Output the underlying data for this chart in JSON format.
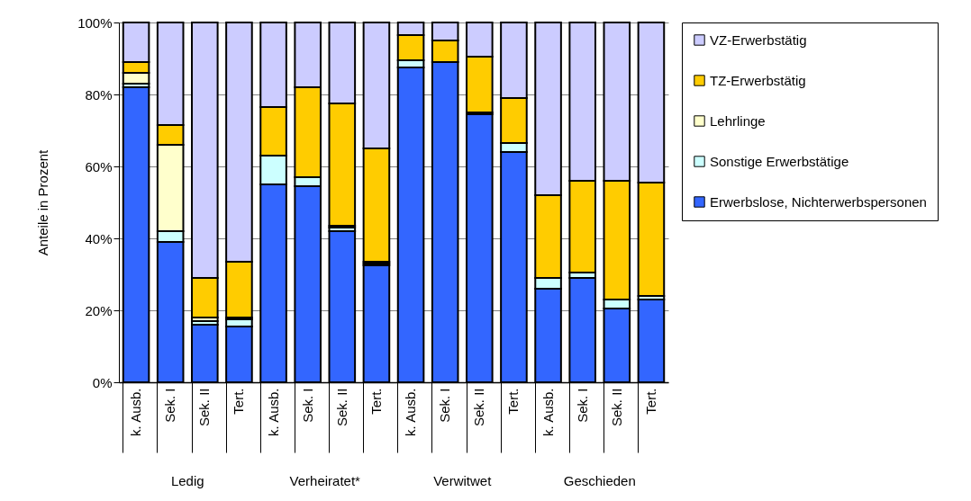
{
  "chart_data": {
    "type": "bar",
    "stacked": true,
    "ylabel": "Anteile in Prozent",
    "categories": [
      "k. Ausb.",
      "Sek. I",
      "Sek. II",
      "Tert.",
      "k. Ausb.",
      "Sek. I",
      "Sek. II",
      "Tert.",
      "k. Ausb.",
      "Sek. I",
      "Sek. II",
      "Tert.",
      "k. Ausb.",
      "Sek. I",
      "Sek. II",
      "Tert."
    ],
    "annotations": [
      "Ledig",
      "Verheiratet*",
      "Verwitwet",
      "Geschieden"
    ],
    "series": [
      {
        "name": "Erwerbslose, Nichterwerbspersonen",
        "color": "#3366ff",
        "values": [
          82,
          39,
          16,
          15.5,
          55,
          54.5,
          42,
          32.5,
          87.5,
          89,
          74.5,
          64,
          26,
          29,
          20.5,
          23
        ]
      },
      {
        "name": "Sonstige Erwerbstätige",
        "color": "#ccffff",
        "values": [
          1,
          3,
          1,
          2,
          8,
          2.5,
          1,
          0.5,
          2,
          0,
          0.5,
          2.5,
          3,
          1.5,
          2.5,
          1
        ]
      },
      {
        "name": "Lehrlinge",
        "color": "#ffffcc",
        "values": [
          3,
          24,
          1,
          0.5,
          0,
          0,
          0.5,
          0.5,
          0,
          0,
          0,
          0,
          0,
          0,
          0,
          0
        ]
      },
      {
        "name": "TZ-Erwerbstätig",
        "color": "#ffcc00",
        "values": [
          3,
          5.5,
          11,
          15.5,
          13.5,
          25,
          34,
          31.5,
          7,
          6,
          15.5,
          12.5,
          23,
          25.5,
          33,
          31.5
        ]
      },
      {
        "name": "VZ-Erwerbstätig",
        "color": "#ccccff",
        "values": [
          11,
          28.5,
          71,
          66.5,
          23.5,
          18,
          22.5,
          35,
          3.5,
          5,
          9.5,
          21,
          48,
          44,
          44,
          44.5
        ]
      }
    ],
    "ylim": [
      0,
      100
    ],
    "yticks": [
      {
        "value": 0,
        "label": "0%"
      },
      {
        "value": 20,
        "label": "20%"
      },
      {
        "value": 40,
        "label": "40%"
      },
      {
        "value": 60,
        "label": "60%"
      },
      {
        "value": 80,
        "label": "80%"
      },
      {
        "value": 100,
        "label": "100%"
      }
    ],
    "grid": "y",
    "legend": "right"
  }
}
